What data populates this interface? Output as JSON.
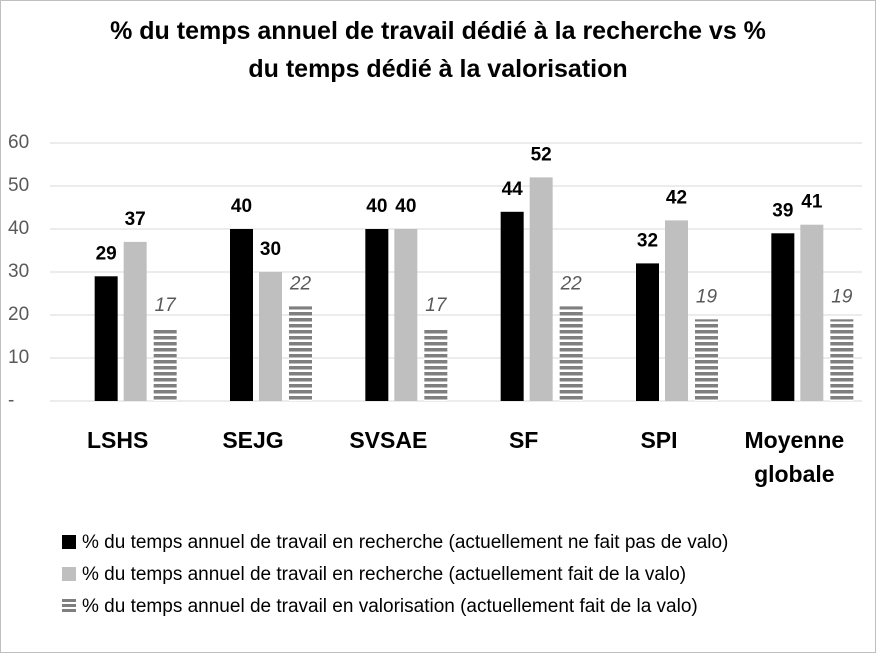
{
  "chart_data": {
    "type": "bar",
    "title": "% du temps annuel de travail dédié à la recherche vs % du temps dédié à la valorisation",
    "categories": [
      "LSHS",
      "SEJG",
      "SVSAE",
      "SF",
      "SPI",
      "Moyenne globale"
    ],
    "series": [
      {
        "name": "% du temps annuel de travail en recherche (actuellement ne fait pas de valo)",
        "color": "#000000",
        "pattern": "solid",
        "values": [
          29,
          40,
          40,
          44,
          32,
          39
        ]
      },
      {
        "name": "% du temps annuel de travail en recherche (actuellement fait de la valo)",
        "color": "#bfbfbf",
        "pattern": "solid",
        "values": [
          37,
          30,
          40,
          52,
          42,
          41
        ]
      },
      {
        "name": "% du temps annuel de travail en valorisation (actuellement fait de la valo)",
        "color": "#7f7f7f",
        "pattern": "stripes",
        "values": [
          17,
          22,
          17,
          22,
          19,
          19
        ]
      }
    ],
    "ylim": [
      0,
      60
    ],
    "yticks": [
      {
        "value": 0,
        "label": "-"
      },
      10,
      20,
      30,
      40,
      50,
      60
    ],
    "grid": true,
    "legend": "bottom"
  }
}
